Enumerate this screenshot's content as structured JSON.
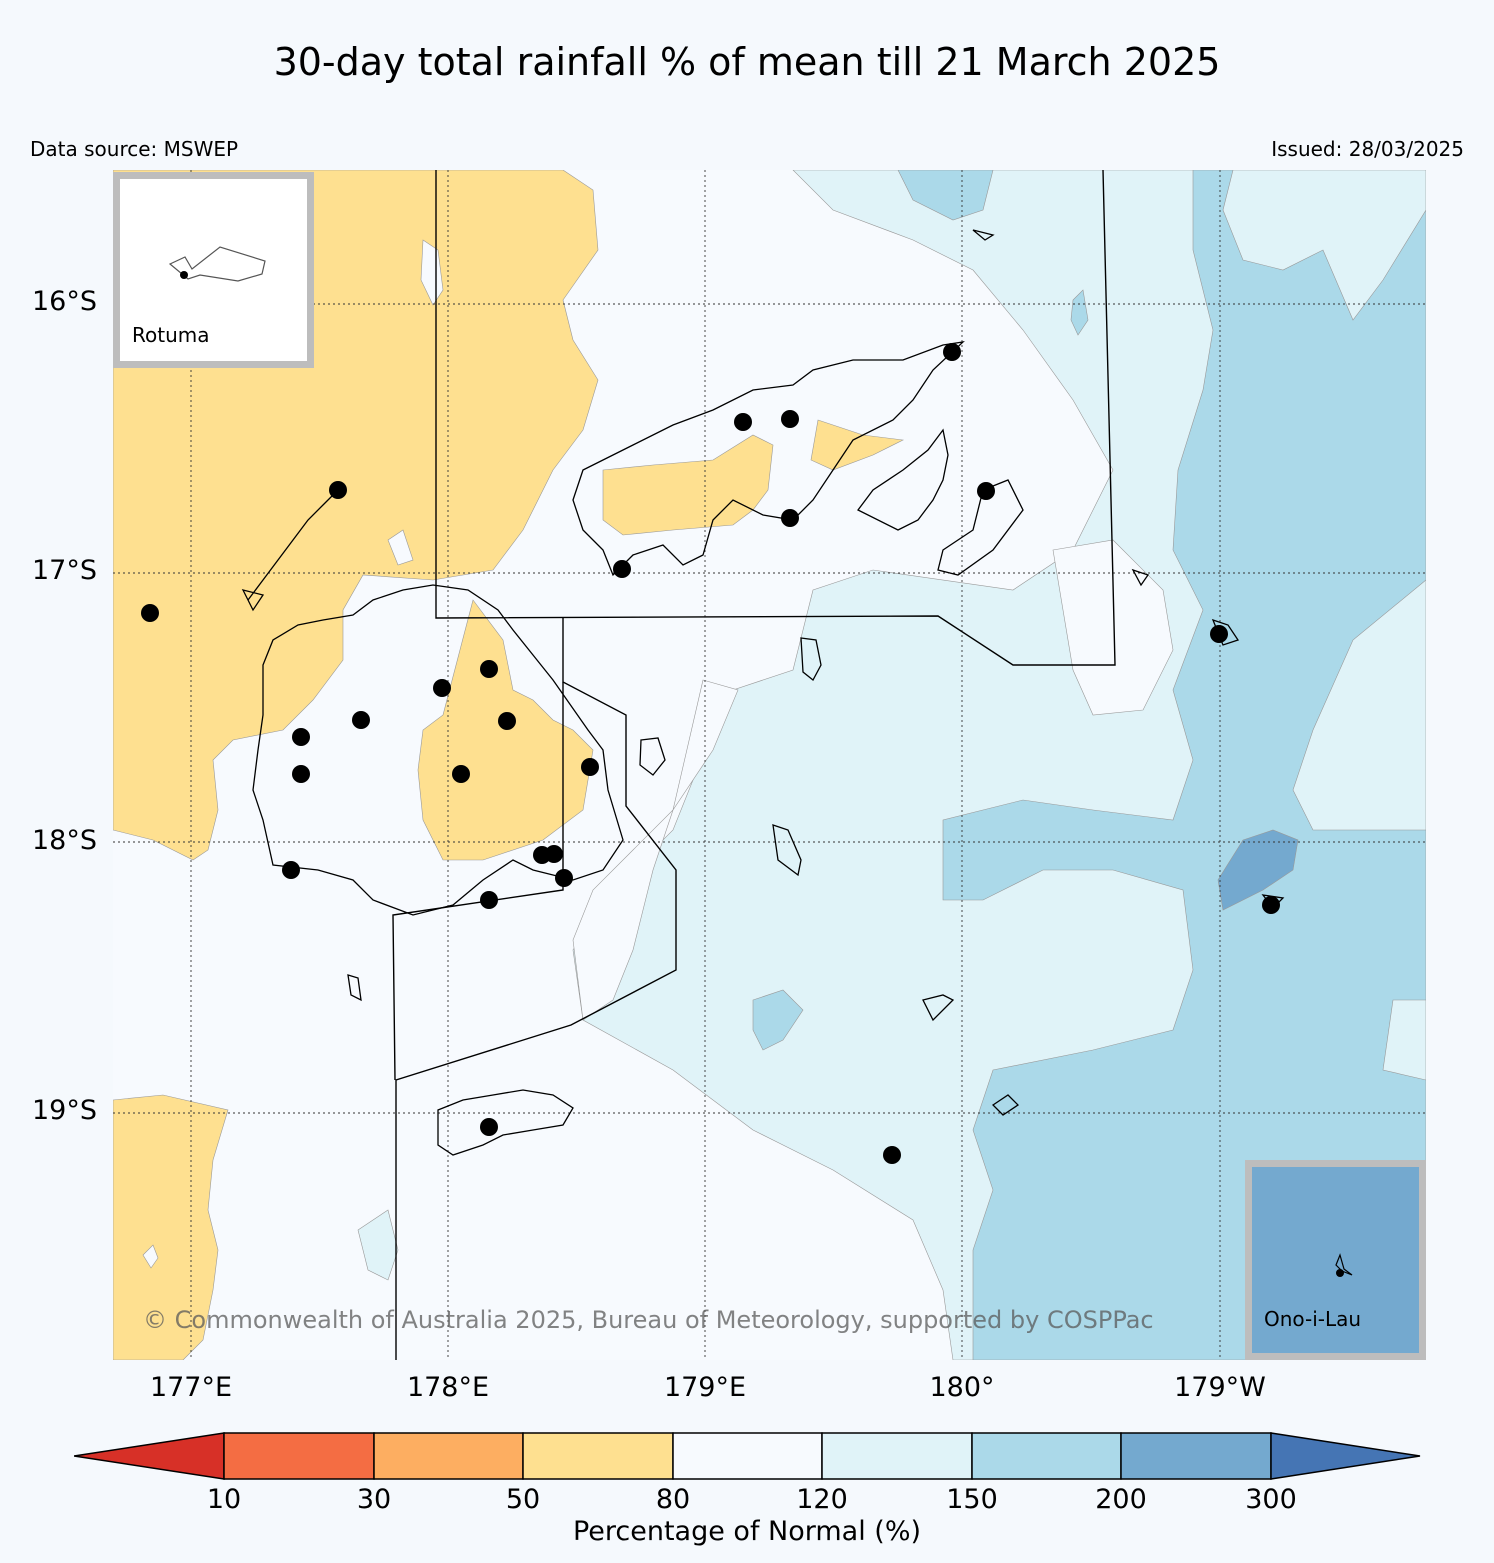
{
  "title": "30-day total rainfall % of mean till 21 March 2025",
  "data_source": "Data source: MSWEP",
  "issued": "Issued: 28/03/2025",
  "copyright": "© Commonwealth of Australia 2025, Bureau of Meteorology, supported by COSPPac",
  "latitude_labels": [
    "16°S",
    "17°S",
    "18°S",
    "19°S"
  ],
  "longitude_labels": [
    "177°E",
    "178°E",
    "179°E",
    "180°",
    "179°W"
  ],
  "insets": {
    "rotuma": "Rotuma",
    "ono": "Ono-i-Lau"
  },
  "colorbar": {
    "label": "Percentage of Normal (%)",
    "ticks": [
      "10",
      "30",
      "50",
      "80",
      "120",
      "150",
      "200",
      "300"
    ],
    "colors": [
      "#d73027",
      "#f46d43",
      "#fdae61",
      "#fee090",
      "#f7fafe",
      "#e0f3f8",
      "#abd9e9",
      "#74a9cf",
      "#4575b4"
    ]
  },
  "colors": {
    "dry_80": "#fee090",
    "normal": "#f7fafe",
    "wet_150": "#e0f3f8",
    "wet_200": "#abd9e9",
    "wet_300": "#74a9cf"
  }
}
